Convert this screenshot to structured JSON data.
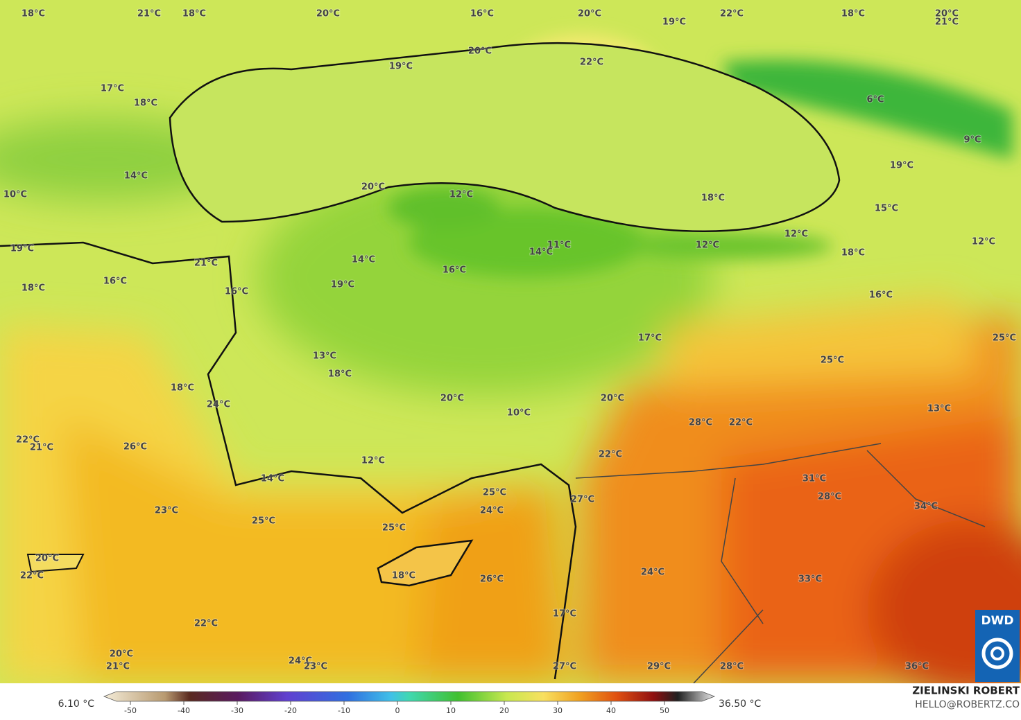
{
  "map": {
    "labels": [
      "18°C",
      "21°C",
      "18°C",
      "20°C",
      "16°C",
      "20°C",
      "22°C",
      "18°C",
      "20°C",
      "21°C",
      "19°C",
      "20°C",
      "19°C",
      "22°C",
      "17°C",
      "18°C",
      "6°C",
      "9°C",
      "19°C",
      "14°C",
      "20°C",
      "12°C",
      "18°C",
      "10°C",
      "15°C",
      "12°C",
      "12°C",
      "11°C",
      "14°C",
      "12°C",
      "18°C",
      "19°C",
      "14°C",
      "21°C",
      "16°C",
      "16°C",
      "19°C",
      "18°C",
      "16°C",
      "16°C",
      "17°C",
      "25°C",
      "13°C",
      "25°C",
      "18°C",
      "18°C",
      "20°C",
      "20°C",
      "24°C",
      "13°C",
      "10°C",
      "28°C",
      "22°C",
      "22°C",
      "21°C",
      "26°C",
      "22°C",
      "12°C",
      "14°C",
      "31°C",
      "25°C",
      "28°C",
      "27°C",
      "34°C",
      "23°C",
      "24°C",
      "25°C",
      "25°C",
      "20°C",
      "22°C",
      "24°C",
      "18°C",
      "26°C",
      "33°C",
      "17°C",
      "22°C",
      "20°C",
      "24°C",
      "21°C",
      "23°C",
      "27°C",
      "29°C",
      "28°C",
      "36°C"
    ],
    "colorbar": {
      "min_label": "6.10 °C",
      "max_label": "36.50 °C",
      "ticks": [
        -50,
        -40,
        -30,
        -20,
        -10,
        0,
        10,
        20,
        30,
        40,
        50
      ]
    },
    "credit": {
      "author": "ZIELINSKI ROBERT",
      "contact": "HELLO@ROBERTZ.CO"
    },
    "logo": "DWD"
  }
}
